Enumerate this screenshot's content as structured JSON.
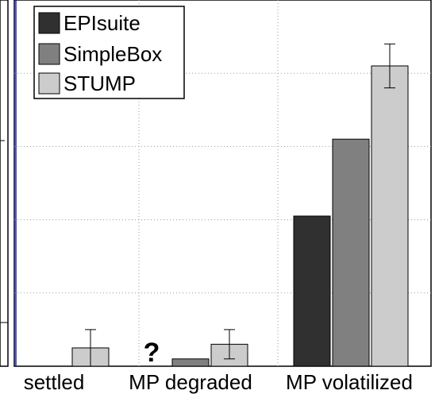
{
  "chart_data": {
    "type": "bar",
    "title": "",
    "xlabel": "",
    "ylabel": "",
    "categories": [
      "settled",
      "MP degraded",
      "MP volatilized"
    ],
    "series": [
      {
        "name": "EPIsuite",
        "color": "#303030",
        "values": [
          0.0,
          null,
          0.41
        ]
      },
      {
        "name": "SimpleBox",
        "color": "#808080",
        "values": [
          null,
          0.02,
          0.62
        ]
      },
      {
        "name": "STUMP",
        "color": "#cccccc",
        "values": [
          0.05,
          0.06,
          0.82
        ],
        "errors": [
          [
            0.0,
            0.1
          ],
          [
            0.02,
            0.1
          ],
          [
            0.76,
            0.88
          ]
        ]
      }
    ],
    "ylim": [
      0,
      1
    ],
    "grid": true,
    "legend": {
      "position": "top-left"
    },
    "annotations": [
      {
        "category": "MP degraded",
        "series": "EPIsuite",
        "text": "?"
      }
    ]
  }
}
